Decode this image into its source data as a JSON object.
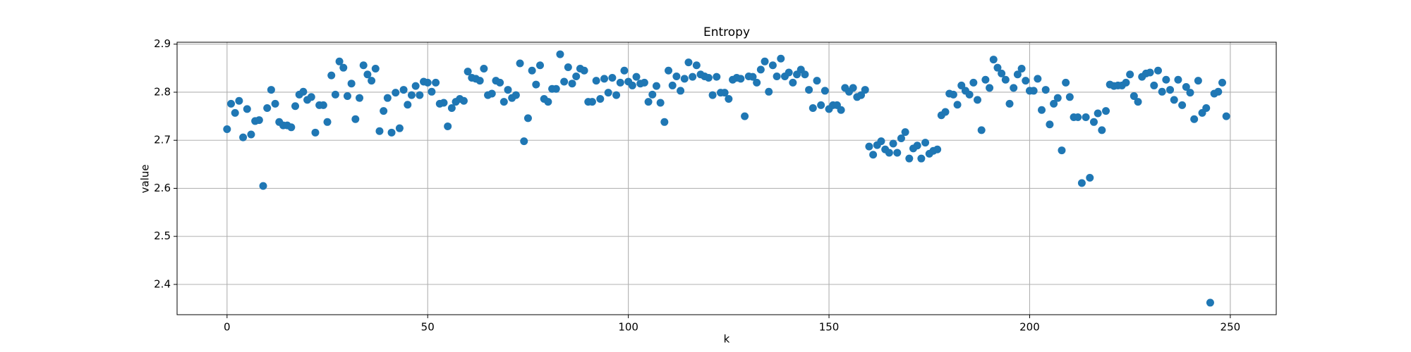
{
  "chart_data": {
    "type": "scatter",
    "title": "Entropy",
    "xlabel": "k",
    "ylabel": "value",
    "color": "#1f77b4",
    "grid": true,
    "xlim": [
      -12.45,
      261.45
    ],
    "ylim": [
      2.337,
      2.904
    ],
    "xticks": [
      0,
      50,
      100,
      150,
      200,
      250
    ],
    "yticks": [
      2.4,
      2.5,
      2.6,
      2.7,
      2.8,
      2.9
    ],
    "x": [
      0,
      1,
      2,
      3,
      4,
      5,
      6,
      7,
      8,
      9,
      10,
      11,
      12,
      13,
      14,
      15,
      16,
      17,
      18,
      19,
      20,
      21,
      22,
      23,
      24,
      25,
      26,
      27,
      28,
      29,
      30,
      31,
      32,
      33,
      34,
      35,
      36,
      37,
      38,
      39,
      40,
      41,
      42,
      43,
      44,
      45,
      46,
      47,
      48,
      49,
      50,
      51,
      52,
      53,
      54,
      55,
      56,
      57,
      58,
      59,
      60,
      61,
      62,
      63,
      64,
      65,
      66,
      67,
      68,
      69,
      70,
      71,
      72,
      73,
      74,
      75,
      76,
      77,
      78,
      79,
      80,
      81,
      82,
      83,
      84,
      85,
      86,
      87,
      88,
      89,
      90,
      91,
      92,
      93,
      94,
      95,
      96,
      97,
      98,
      99,
      100,
      101,
      102,
      103,
      104,
      105,
      106,
      107,
      108,
      109,
      110,
      111,
      112,
      113,
      114,
      115,
      116,
      117,
      118,
      119,
      120,
      121,
      122,
      123,
      124,
      125,
      126,
      127,
      128,
      129,
      130,
      131,
      132,
      133,
      134,
      135,
      136,
      137,
      138,
      139,
      140,
      141,
      142,
      143,
      144,
      145,
      146,
      147,
      148,
      149,
      150,
      151,
      152,
      153,
      154,
      155,
      156,
      157,
      158,
      159,
      160,
      161,
      162,
      163,
      164,
      165,
      166,
      167,
      168,
      169,
      170,
      171,
      172,
      173,
      174,
      175,
      176,
      177,
      178,
      179,
      180,
      181,
      182,
      183,
      184,
      185,
      186,
      187,
      188,
      189,
      190,
      191,
      192,
      193,
      194,
      195,
      196,
      197,
      198,
      199,
      200,
      201,
      202,
      203,
      204,
      205,
      206,
      207,
      208,
      209,
      210,
      211,
      212,
      213,
      214,
      215,
      216,
      217,
      218,
      219,
      220,
      221,
      222,
      223,
      224,
      225,
      226,
      227,
      228,
      229,
      230,
      231,
      232,
      233,
      234,
      235,
      236,
      237,
      238,
      239,
      240,
      241,
      242,
      243,
      244,
      245,
      246,
      247,
      248,
      249
    ],
    "values": [
      2.723,
      2.776,
      2.757,
      2.782,
      2.706,
      2.765,
      2.712,
      2.74,
      2.742,
      2.605,
      2.767,
      2.805,
      2.776,
      2.738,
      2.731,
      2.731,
      2.727,
      2.771,
      2.795,
      2.801,
      2.784,
      2.79,
      2.716,
      2.773,
      2.773,
      2.738,
      2.835,
      2.795,
      2.864,
      2.851,
      2.792,
      2.818,
      2.744,
      2.788,
      2.856,
      2.837,
      2.824,
      2.849,
      2.719,
      2.761,
      2.788,
      2.716,
      2.799,
      2.725,
      2.805,
      2.774,
      2.794,
      2.813,
      2.794,
      2.822,
      2.82,
      2.801,
      2.82,
      2.776,
      2.778,
      2.729,
      2.767,
      2.78,
      2.786,
      2.782,
      2.843,
      2.83,
      2.828,
      2.824,
      2.849,
      2.794,
      2.797,
      2.824,
      2.82,
      2.78,
      2.805,
      2.788,
      2.794,
      2.86,
      2.698,
      2.746,
      2.845,
      2.816,
      2.856,
      2.786,
      2.78,
      2.807,
      2.807,
      2.879,
      2.822,
      2.852,
      2.818,
      2.833,
      2.849,
      2.845,
      2.78,
      2.78,
      2.824,
      2.786,
      2.828,
      2.799,
      2.83,
      2.794,
      2.82,
      2.845,
      2.822,
      2.814,
      2.832,
      2.818,
      2.82,
      2.78,
      2.795,
      2.813,
      2.778,
      2.738,
      2.845,
      2.814,
      2.833,
      2.803,
      2.828,
      2.862,
      2.832,
      2.856,
      2.837,
      2.833,
      2.83,
      2.794,
      2.832,
      2.799,
      2.799,
      2.786,
      2.826,
      2.83,
      2.828,
      2.75,
      2.833,
      2.832,
      2.82,
      2.847,
      2.864,
      2.801,
      2.856,
      2.833,
      2.87,
      2.833,
      2.841,
      2.82,
      2.837,
      2.847,
      2.837,
      2.805,
      2.767,
      2.824,
      2.773,
      2.803,
      2.765,
      2.773,
      2.773,
      2.763,
      2.809,
      2.801,
      2.809,
      2.79,
      2.794,
      2.805,
      2.687,
      2.67,
      2.69,
      2.698,
      2.681,
      2.674,
      2.693,
      2.674,
      2.704,
      2.717,
      2.662,
      2.683,
      2.689,
      2.662,
      2.695,
      2.672,
      2.678,
      2.681,
      2.752,
      2.759,
      2.797,
      2.795,
      2.774,
      2.814,
      2.803,
      2.795,
      2.82,
      2.784,
      2.721,
      2.826,
      2.809,
      2.868,
      2.851,
      2.839,
      2.826,
      2.776,
      2.809,
      2.837,
      2.849,
      2.824,
      2.803,
      2.803,
      2.828,
      2.763,
      2.805,
      2.733,
      2.776,
      2.788,
      2.679,
      2.82,
      2.79,
      2.748,
      2.748,
      2.611,
      2.748,
      2.622,
      2.738,
      2.756,
      2.721,
      2.761,
      2.816,
      2.813,
      2.814,
      2.814,
      2.82,
      2.837,
      2.792,
      2.78,
      2.832,
      2.839,
      2.841,
      2.814,
      2.845,
      2.801,
      2.826,
      2.805,
      2.784,
      2.826,
      2.773,
      2.811,
      2.799,
      2.744,
      2.824,
      2.757,
      2.767,
      2.362,
      2.797,
      2.801,
      2.82,
      2.75
    ]
  }
}
